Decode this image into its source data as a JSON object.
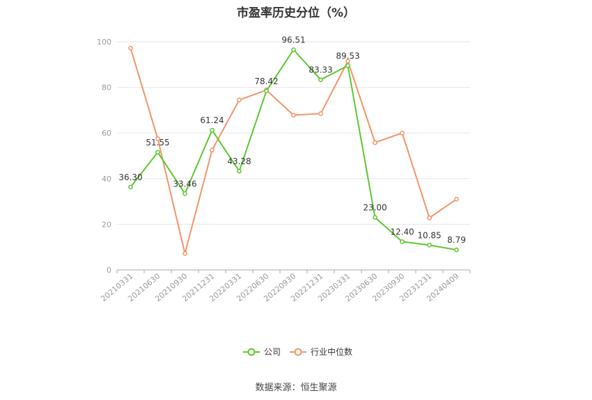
{
  "title": "市盈率历史分位（%）",
  "source": "数据来源：恒生聚源",
  "chart_data": {
    "type": "line",
    "title": "市盈率历史分位（%）",
    "categories": [
      "20210331",
      "20210630",
      "20210930",
      "20211231",
      "20220331",
      "20220630",
      "20220930",
      "20221231",
      "20230331",
      "20230630",
      "20230930",
      "20231231",
      "20240409"
    ],
    "ylim": [
      0,
      100
    ],
    "yticks": [
      0,
      20,
      40,
      60,
      80,
      100
    ],
    "grid": true,
    "legend_position": "bottom",
    "series": [
      {
        "name": "公司",
        "color": "#5ac72e",
        "values": [
          36.3,
          51.55,
          33.46,
          61.24,
          43.28,
          78.42,
          96.51,
          83.33,
          89.53,
          23.0,
          12.4,
          10.85,
          8.79
        ],
        "labels": [
          "36.30",
          "51.55",
          "33.46",
          "61.24",
          "43.28",
          "78.42",
          "96.51",
          "83.33",
          "89.53",
          "23.00",
          "12.40",
          "10.85",
          "8.79"
        ]
      },
      {
        "name": "行业中位数",
        "color": "#f39366",
        "values": [
          97.2,
          57.5,
          7.2,
          52.5,
          74.5,
          78.8,
          67.8,
          68.5,
          91.5,
          55.8,
          60.0,
          22.8,
          31.0
        ]
      }
    ]
  }
}
